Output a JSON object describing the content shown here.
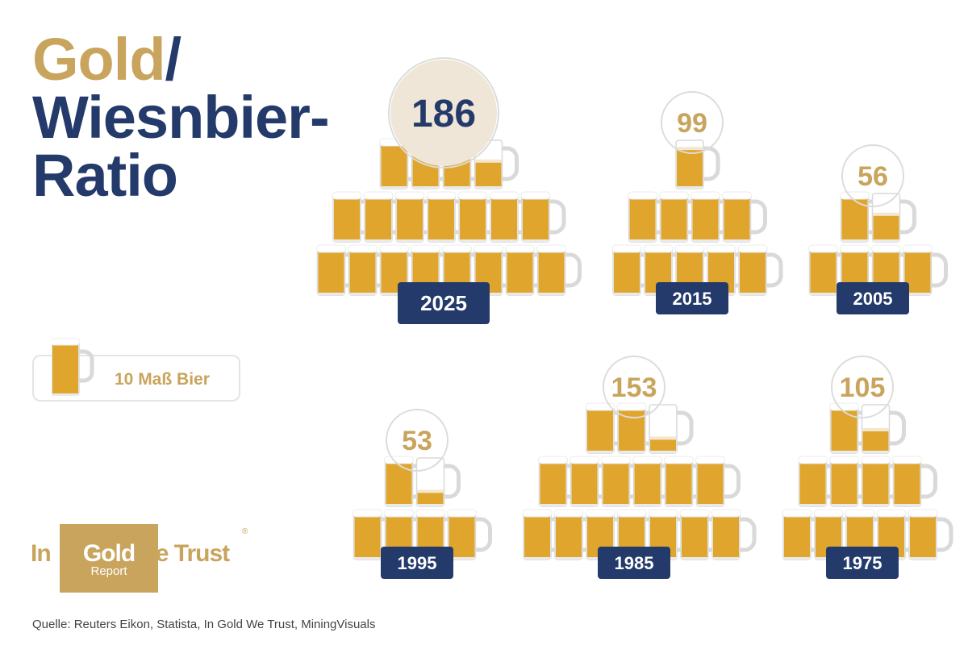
{
  "title": {
    "line1_a": "Gold",
    "line1_b": "/",
    "line2": "Wiesnbier-",
    "line3": "Ratio"
  },
  "legend": {
    "label": "10 Maß Bier",
    "icon": "beer-mug-icon"
  },
  "colors": {
    "gold": "#c8a45d",
    "navy": "#233a6b",
    "beer": "#e0a52c",
    "foam": "#ffffff",
    "glass": "#d9d9d9",
    "highlight_circle": "#efe6d7"
  },
  "chart_data": {
    "type": "pictogram",
    "unit": "10 Maß Bier",
    "groups": [
      {
        "year": "2025",
        "ratio": 186,
        "highlight": true
      },
      {
        "year": "2015",
        "ratio": 99
      },
      {
        "year": "2005",
        "ratio": 56
      },
      {
        "year": "1995",
        "ratio": 53
      },
      {
        "year": "1985",
        "ratio": 153
      },
      {
        "year": "1975",
        "ratio": 105
      }
    ]
  },
  "logo": {
    "left": "In",
    "middle": "Gold",
    "sub": "Report",
    "right": "We Trust",
    "registered": "®"
  },
  "source": "Quelle: Reuters Eikon, Statista, In Gold We Trust, MiningVisuals"
}
